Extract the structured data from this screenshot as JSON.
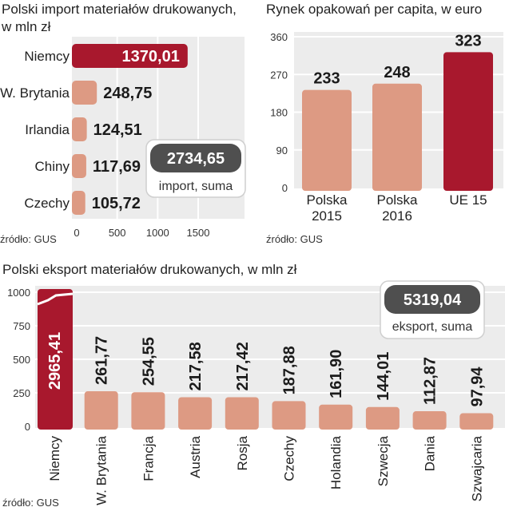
{
  "colors": {
    "highlight": "#a8182d",
    "bar": "#dd9a83",
    "panel": "#ececec",
    "grid": "#ffffff",
    "total_box": "#4f4f4f"
  },
  "chart_data": [
    {
      "type": "bar",
      "orientation": "horizontal",
      "title": "Polski import materiałów drukowanych, w mln zł",
      "title_lines": [
        "Polski import materiałów drukowanych,",
        "w mln zł"
      ],
      "categories": [
        "Niemcy",
        "W. Brytania",
        "Irlandia",
        "Chiny",
        "Czechy"
      ],
      "values": [
        1370.01,
        248.75,
        124.51,
        117.69,
        105.72
      ],
      "value_labels": [
        "1370,01",
        "248,75",
        "124,51",
        "117,69",
        "105,72"
      ],
      "highlight_index": 0,
      "xlim": [
        0,
        1500
      ],
      "xticks": [
        "0",
        "500",
        "1000",
        "1500"
      ],
      "xtick_values": [
        0,
        500,
        1000,
        1500
      ],
      "total_value": "2734,65",
      "total_label": "import, suma",
      "source": "źródło: GUS"
    },
    {
      "type": "bar",
      "title": "Rynek opakowań per capita, w euro",
      "categories": [
        [
          "Polska",
          "2015"
        ],
        [
          "Polska",
          "2016"
        ],
        [
          "UE 15"
        ]
      ],
      "values": [
        233,
        248,
        323
      ],
      "value_labels": [
        "233",
        "248",
        "323"
      ],
      "highlight_index": 2,
      "ylim": [
        0,
        360
      ],
      "yticks": [
        "360",
        "270",
        "180",
        "90",
        "0"
      ],
      "ytick_values": [
        360,
        270,
        180,
        90,
        0
      ],
      "source": "źródło: GUS"
    },
    {
      "type": "bar",
      "title": "Polski eksport materiałów drukowanych, w mln zł",
      "categories": [
        "Niemcy",
        "W. Brytania",
        "Francja",
        "Austria",
        "Rosja",
        "Czechy",
        "Holandia",
        "Szwecja",
        "Dania",
        "Szwajcaria"
      ],
      "values": [
        2965.41,
        261.77,
        254.55,
        217.58,
        217.42,
        187.88,
        161.9,
        144.01,
        112.87,
        97.94
      ],
      "value_labels": [
        "2965,41",
        "261,77",
        "254,55",
        "217,58",
        "217,42",
        "187,88",
        "161,90",
        "144,01",
        "112,87",
        "97,94"
      ],
      "highlight_index": 0,
      "axis_break": true,
      "ylim": [
        0,
        1000
      ],
      "yticks": [
        "1000",
        "750",
        "500",
        "250",
        "0"
      ],
      "ytick_values": [
        1000,
        750,
        500,
        250,
        0
      ],
      "total_value": "5319,04",
      "total_label": "eksport, suma",
      "source": "źródło: GUS"
    }
  ]
}
